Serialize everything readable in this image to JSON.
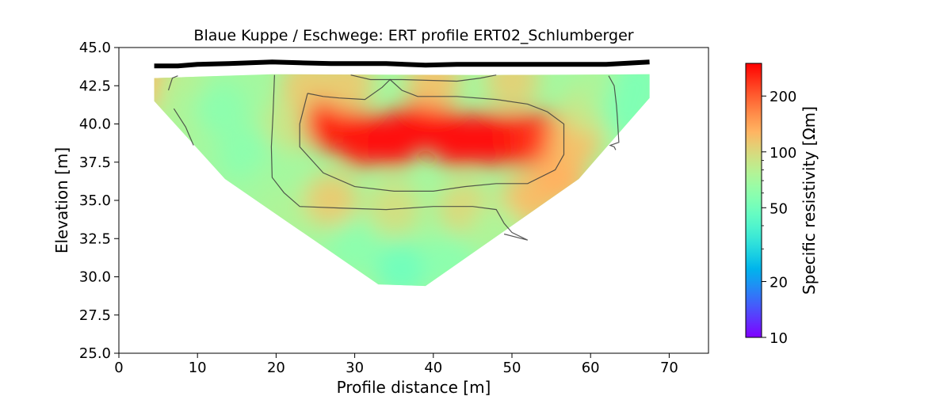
{
  "chart_data": {
    "type": "heatmap",
    "title": "Blaue Kuppe / Eschwege: ERT profile ERT02_Schlumberger",
    "xlabel": "Profile distance [m]",
    "ylabel": "Elevation [m]",
    "xlim": [
      0,
      75
    ],
    "ylim": [
      25,
      45
    ],
    "x_ticks": [
      "0",
      "10",
      "20",
      "30",
      "40",
      "50",
      "60",
      "70"
    ],
    "y_ticks": [
      "25.0",
      "27.5",
      "30.0",
      "32.5",
      "35.0",
      "37.5",
      "40.0",
      "42.5",
      "45.0"
    ],
    "colorbar": {
      "label": "Specific resistivity [Ωm]",
      "scale": "log",
      "range": [
        10,
        300
      ],
      "colormap": "rainbow",
      "tick_values": [
        10,
        20,
        50,
        100,
        200
      ],
      "tick_labels": [
        "10",
        "20",
        "50",
        "100",
        "200"
      ]
    },
    "topography": [
      [
        4.5,
        43.8
      ],
      [
        7.5,
        43.8
      ],
      [
        10,
        43.9
      ],
      [
        14,
        43.95
      ],
      [
        19.5,
        44.05
      ],
      [
        23,
        44.0
      ],
      [
        27,
        43.95
      ],
      [
        34,
        43.95
      ],
      [
        39,
        43.85
      ],
      [
        43,
        43.9
      ],
      [
        47,
        43.9
      ],
      [
        52,
        43.9
      ],
      [
        58,
        43.9
      ],
      [
        62,
        43.9
      ],
      [
        67.5,
        44.05
      ]
    ],
    "model_outline": [
      [
        4.5,
        43.0
      ],
      [
        19.5,
        43.25
      ],
      [
        48,
        43.2
      ],
      [
        67.5,
        43.25
      ],
      [
        67.5,
        41.7
      ],
      [
        58.5,
        36.4
      ],
      [
        39,
        29.4
      ],
      [
        33,
        29.5
      ],
      [
        13.5,
        36.4
      ],
      [
        4.5,
        41.5
      ]
    ],
    "resistivity_cells": [
      {
        "x": 5,
        "y": 42.5,
        "rho": 130
      },
      {
        "x": 8,
        "y": 42.2,
        "rho": 80
      },
      {
        "x": 8,
        "y": 40.5,
        "rho": 75
      },
      {
        "x": 13,
        "y": 41,
        "rho": 60
      },
      {
        "x": 16,
        "y": 38,
        "rho": 60
      },
      {
        "x": 20,
        "y": 36,
        "rho": 70
      },
      {
        "x": 22,
        "y": 40,
        "rho": 90
      },
      {
        "x": 24,
        "y": 42.5,
        "rho": 110
      },
      {
        "x": 21,
        "y": 34,
        "rho": 75
      },
      {
        "x": 27,
        "y": 40,
        "rho": 260
      },
      {
        "x": 31,
        "y": 39,
        "rho": 270
      },
      {
        "x": 35,
        "y": 39,
        "rho": 280
      },
      {
        "x": 39,
        "y": 40,
        "rho": 280
      },
      {
        "x": 43,
        "y": 39,
        "rho": 280
      },
      {
        "x": 47,
        "y": 39,
        "rho": 280
      },
      {
        "x": 51,
        "y": 39,
        "rho": 270
      },
      {
        "x": 54,
        "y": 39,
        "rho": 240
      },
      {
        "x": 40,
        "y": 42.8,
        "rho": 115
      },
      {
        "x": 29,
        "y": 42.6,
        "rho": 110
      },
      {
        "x": 50,
        "y": 42.8,
        "rho": 105
      },
      {
        "x": 27,
        "y": 35,
        "rho": 110
      },
      {
        "x": 35,
        "y": 34.5,
        "rho": 95
      },
      {
        "x": 44,
        "y": 34.5,
        "rho": 100
      },
      {
        "x": 52,
        "y": 35,
        "rho": 120
      },
      {
        "x": 56,
        "y": 36.5,
        "rho": 130
      },
      {
        "x": 58,
        "y": 39,
        "rho": 120
      },
      {
        "x": 60,
        "y": 41,
        "rho": 90
      },
      {
        "x": 62,
        "y": 42.2,
        "rho": 75
      },
      {
        "x": 66,
        "y": 42.6,
        "rho": 55
      },
      {
        "x": 65,
        "y": 40.8,
        "rho": 55
      },
      {
        "x": 36,
        "y": 30.5,
        "rho": 50
      },
      {
        "x": 30,
        "y": 32,
        "rho": 60
      },
      {
        "x": 42,
        "y": 31,
        "rho": 60
      },
      {
        "x": 48,
        "y": 33,
        "rho": 75
      }
    ],
    "contour_100": [
      [
        29.5,
        43.2
      ],
      [
        32,
        42.9
      ],
      [
        34.5,
        42.9
      ],
      [
        36,
        42.9
      ],
      [
        43,
        42.8
      ],
      [
        46,
        43.0
      ],
      [
        48,
        43.2
      ]
    ],
    "contour_left": [
      [
        6.3,
        42.2
      ],
      [
        6.8,
        43.0
      ],
      [
        7.5,
        43.15
      ]
    ],
    "contour_150": [
      [
        24,
        42.0
      ],
      [
        26,
        41.8
      ],
      [
        28,
        41.7
      ],
      [
        31.3,
        41.6
      ],
      [
        33.5,
        42.4
      ],
      [
        34.5,
        42.9
      ],
      [
        36,
        42.2
      ],
      [
        38,
        41.8
      ],
      [
        43,
        41.8
      ],
      [
        48,
        41.6
      ],
      [
        52,
        41.3
      ],
      [
        54.5,
        40.8
      ],
      [
        56.6,
        40.0
      ],
      [
        56.6,
        38.0
      ],
      [
        55.5,
        37.0
      ],
      [
        52,
        36.1
      ],
      [
        48,
        36.1
      ],
      [
        44,
        35.9
      ],
      [
        40,
        35.6
      ],
      [
        35,
        35.6
      ],
      [
        30,
        35.9
      ],
      [
        26,
        36.8
      ],
      [
        23,
        38.5
      ],
      [
        23,
        40.0
      ],
      [
        24,
        42.0
      ]
    ],
    "contour_outer_left": [
      [
        19.8,
        43.2
      ],
      [
        19.6,
        40.5
      ],
      [
        19.4,
        38.5
      ],
      [
        19.5,
        36.5
      ],
      [
        21,
        35.5
      ],
      [
        23,
        34.6
      ],
      [
        28,
        34.5
      ],
      [
        34,
        34.4
      ],
      [
        40,
        34.6
      ],
      [
        45,
        34.6
      ],
      [
        48,
        34.4
      ],
      [
        49,
        33.5
      ],
      [
        50,
        32.9
      ],
      [
        52,
        32.4
      ],
      [
        49,
        32.8
      ]
    ],
    "contour_right": [
      [
        62.3,
        43.15
      ],
      [
        63.0,
        42.5
      ],
      [
        63.3,
        41.2
      ],
      [
        63.4,
        40.5
      ],
      [
        63.6,
        38.8
      ],
      [
        62.5,
        38.6
      ],
      [
        63,
        38.5
      ],
      [
        63.2,
        38.3
      ]
    ],
    "contour_left_low": [
      [
        7,
        41.0
      ],
      [
        8.5,
        39.8
      ],
      [
        9.5,
        38.6
      ]
    ]
  }
}
